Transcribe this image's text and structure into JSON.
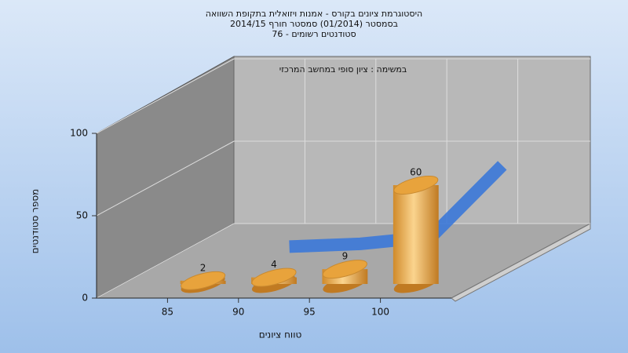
{
  "chart_data": {
    "type": "histogram",
    "title": [
      "היסטוגרמת ציונים בקורס - אמנות ויזואלית בתקופת השוואה",
      "בסמסטר  (01/2014)  סמסטר חורף 2014/15",
      "סטודנטים רשומים - 76"
    ],
    "annotation": "במשימה : ציון סופי במחשב המרכזי",
    "x_label": "טווח ציונים",
    "y_label": "מספר סטודנטים",
    "bins": [
      85,
      90,
      95,
      100,
      105
    ],
    "values": [
      2,
      4,
      9,
      60
    ],
    "color": "#e8a33c",
    "area_color": "#3b78d8",
    "xlim": [
      80,
      105
    ],
    "xticks": [
      85,
      90,
      95,
      100
    ],
    "ylim": [
      0,
      100
    ],
    "yticks": [
      0,
      50,
      100
    ],
    "grid": true
  }
}
